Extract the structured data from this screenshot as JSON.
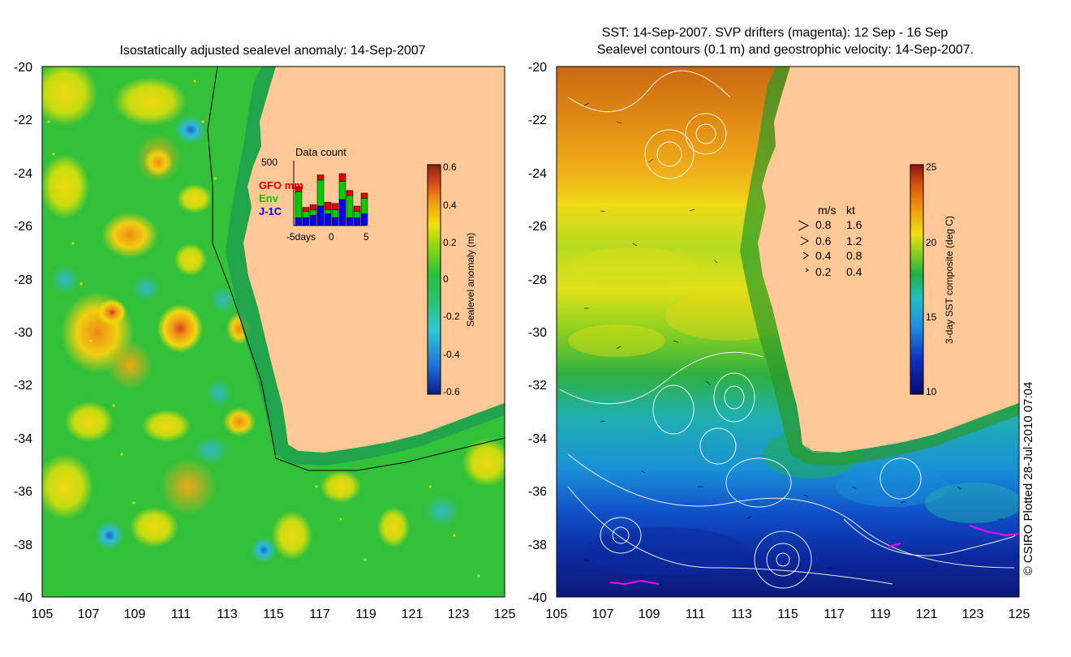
{
  "left_panel": {
    "title": "Isostatically adjusted sealevel anomaly: 14-Sep-2007",
    "lat_ticks": [
      "-20",
      "-22",
      "-24",
      "-26",
      "-28",
      "-30",
      "-32",
      "-34",
      "-36",
      "-38",
      "-40"
    ],
    "lon_ticks": [
      "105",
      "107",
      "109",
      "111",
      "113",
      "115",
      "117",
      "119",
      "121",
      "123",
      "125"
    ],
    "colorbar": {
      "label": "Sealevel anomaly (m)",
      "ticks": [
        "0.6",
        "0.4",
        "0.2",
        "0",
        "-0.2",
        "-0.4",
        "-0.6"
      ],
      "range": [
        -0.6,
        0.6
      ]
    },
    "data_count_inset": {
      "title": "Data count",
      "y_max_label": "500",
      "legend": [
        {
          "label": "GFO mm",
          "color": "#e00000"
        },
        {
          "label": "Env",
          "color": "#00cc00"
        },
        {
          "label": "J-1C",
          "color": "#0000ee"
        }
      ],
      "x_labels": [
        "-5days",
        "0",
        "5"
      ],
      "bars": [
        {
          "j1c": 60,
          "env": 200,
          "gfo": 40
        },
        {
          "j1c": 60,
          "env": 50,
          "gfo": 30
        },
        {
          "j1c": 80,
          "env": 40,
          "gfo": 40
        },
        {
          "j1c": 150,
          "env": 200,
          "gfo": 40
        },
        {
          "j1c": 90,
          "env": 30,
          "gfo": 60
        },
        {
          "j1c": 60,
          "env": 60,
          "gfo": 50
        },
        {
          "j1c": 200,
          "env": 140,
          "gfo": 60
        },
        {
          "j1c": 60,
          "env": 170,
          "gfo": 40
        },
        {
          "j1c": 60,
          "env": 50,
          "gfo": 40
        },
        {
          "j1c": 90,
          "env": 120,
          "gfo": 40
        }
      ]
    }
  },
  "right_panel": {
    "title_line1": "SST: 14-Sep-2007. SVP drifters (magenta): 12 Sep - 16 Sep",
    "title_line2": "Sealevel contours (0.1 m) and geostrophic velocity: 14-Sep-2007.",
    "lat_ticks": [
      "-20",
      "-22",
      "-24",
      "-26",
      "-28",
      "-30",
      "-32",
      "-34",
      "-36",
      "-38",
      "-40"
    ],
    "lon_ticks": [
      "105",
      "107",
      "109",
      "111",
      "113",
      "115",
      "117",
      "119",
      "121",
      "123",
      "125"
    ],
    "colorbar": {
      "label": "3-day SST composite (deg C)",
      "ticks": [
        "25",
        "20",
        "15",
        "10"
      ],
      "range": [
        10,
        25
      ]
    },
    "velocity_key": {
      "header_ms": "m/s",
      "header_kt": "kt",
      "rows": [
        {
          "ms": "0.8",
          "kt": "1.6"
        },
        {
          "ms": "0.6",
          "kt": "1.2"
        },
        {
          "ms": "0.4",
          "kt": "0.8"
        },
        {
          "ms": "0.2",
          "kt": "0.4"
        }
      ]
    }
  },
  "credit": "© CSIRO Plotted 28-Jul-2010 07:04",
  "colors": {
    "land": "#ffc896",
    "sla_scale": [
      "#0c1f8a",
      "#1f6fd8",
      "#2fc8d8",
      "#2bbf6a",
      "#24c23c",
      "#8ad60e",
      "#f0e00a",
      "#f19a12",
      "#d0401c",
      "#8a2414"
    ],
    "sst_scale": [
      "#0a0a6e",
      "#1030c0",
      "#2090e0",
      "#20c0c0",
      "#20b040",
      "#90d020",
      "#f0e010",
      "#f09010",
      "#d05010",
      "#901010"
    ],
    "drifter": "#ff00ff",
    "inset_axis": "#000000"
  }
}
